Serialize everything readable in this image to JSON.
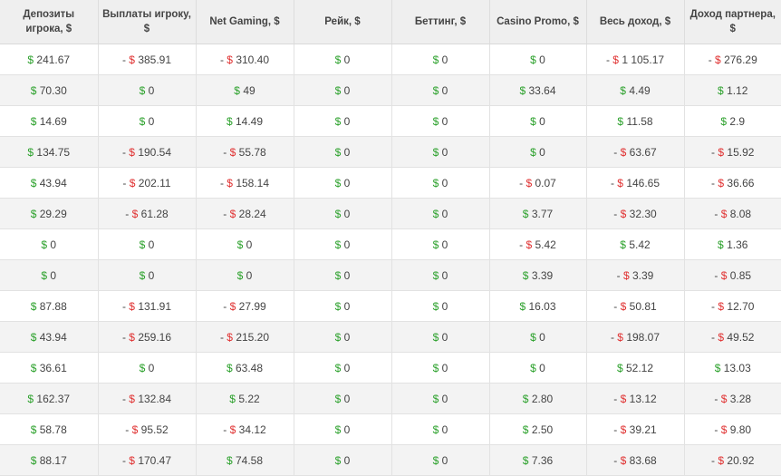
{
  "colors": {
    "positive_currency": "#2aa02a",
    "negative_currency": "#e03030",
    "header_bg": "#efefef",
    "row_alt_bg": "#f3f3f3"
  },
  "currency_symbol": "$",
  "negative_prefix": "-",
  "headers": [
    "Депозиты игрока, $",
    "Выплаты игроку, $",
    "Net Gaming, $",
    "Рейк, $",
    "Беттинг, $",
    "Casino Promo, $",
    "Весь доход, $",
    "Доход партнера, $"
  ],
  "rows": [
    [
      {
        "neg": false,
        "v": "241.67"
      },
      {
        "neg": true,
        "v": "385.91"
      },
      {
        "neg": true,
        "v": "310.40"
      },
      {
        "neg": false,
        "v": "0"
      },
      {
        "neg": false,
        "v": "0"
      },
      {
        "neg": false,
        "v": "0"
      },
      {
        "neg": true,
        "v": "1 105.17"
      },
      {
        "neg": true,
        "v": "276.29"
      }
    ],
    [
      {
        "neg": false,
        "v": "70.30"
      },
      {
        "neg": false,
        "v": "0"
      },
      {
        "neg": false,
        "v": "49"
      },
      {
        "neg": false,
        "v": "0"
      },
      {
        "neg": false,
        "v": "0"
      },
      {
        "neg": false,
        "v": "33.64"
      },
      {
        "neg": false,
        "v": "4.49"
      },
      {
        "neg": false,
        "v": "1.12"
      }
    ],
    [
      {
        "neg": false,
        "v": "14.69"
      },
      {
        "neg": false,
        "v": "0"
      },
      {
        "neg": false,
        "v": "14.49"
      },
      {
        "neg": false,
        "v": "0"
      },
      {
        "neg": false,
        "v": "0"
      },
      {
        "neg": false,
        "v": "0"
      },
      {
        "neg": false,
        "v": "11.58"
      },
      {
        "neg": false,
        "v": "2.9"
      }
    ],
    [
      {
        "neg": false,
        "v": "134.75"
      },
      {
        "neg": true,
        "v": "190.54"
      },
      {
        "neg": true,
        "v": "55.78"
      },
      {
        "neg": false,
        "v": "0"
      },
      {
        "neg": false,
        "v": "0"
      },
      {
        "neg": false,
        "v": "0"
      },
      {
        "neg": true,
        "v": "63.67"
      },
      {
        "neg": true,
        "v": "15.92"
      }
    ],
    [
      {
        "neg": false,
        "v": "43.94"
      },
      {
        "neg": true,
        "v": "202.11"
      },
      {
        "neg": true,
        "v": "158.14"
      },
      {
        "neg": false,
        "v": "0"
      },
      {
        "neg": false,
        "v": "0"
      },
      {
        "neg": true,
        "v": "0.07"
      },
      {
        "neg": true,
        "v": "146.65"
      },
      {
        "neg": true,
        "v": "36.66"
      }
    ],
    [
      {
        "neg": false,
        "v": "29.29"
      },
      {
        "neg": true,
        "v": "61.28"
      },
      {
        "neg": true,
        "v": "28.24"
      },
      {
        "neg": false,
        "v": "0"
      },
      {
        "neg": false,
        "v": "0"
      },
      {
        "neg": false,
        "v": "3.77"
      },
      {
        "neg": true,
        "v": "32.30"
      },
      {
        "neg": true,
        "v": "8.08"
      }
    ],
    [
      {
        "neg": false,
        "v": "0"
      },
      {
        "neg": false,
        "v": "0"
      },
      {
        "neg": false,
        "v": "0"
      },
      {
        "neg": false,
        "v": "0"
      },
      {
        "neg": false,
        "v": "0"
      },
      {
        "neg": true,
        "v": "5.42"
      },
      {
        "neg": false,
        "v": "5.42"
      },
      {
        "neg": false,
        "v": "1.36"
      }
    ],
    [
      {
        "neg": false,
        "v": "0"
      },
      {
        "neg": false,
        "v": "0"
      },
      {
        "neg": false,
        "v": "0"
      },
      {
        "neg": false,
        "v": "0"
      },
      {
        "neg": false,
        "v": "0"
      },
      {
        "neg": false,
        "v": "3.39"
      },
      {
        "neg": true,
        "v": "3.39"
      },
      {
        "neg": true,
        "v": "0.85"
      }
    ],
    [
      {
        "neg": false,
        "v": "87.88"
      },
      {
        "neg": true,
        "v": "131.91"
      },
      {
        "neg": true,
        "v": "27.99"
      },
      {
        "neg": false,
        "v": "0"
      },
      {
        "neg": false,
        "v": "0"
      },
      {
        "neg": false,
        "v": "16.03"
      },
      {
        "neg": true,
        "v": "50.81"
      },
      {
        "neg": true,
        "v": "12.70"
      }
    ],
    [
      {
        "neg": false,
        "v": "43.94"
      },
      {
        "neg": true,
        "v": "259.16"
      },
      {
        "neg": true,
        "v": "215.20"
      },
      {
        "neg": false,
        "v": "0"
      },
      {
        "neg": false,
        "v": "0"
      },
      {
        "neg": false,
        "v": "0"
      },
      {
        "neg": true,
        "v": "198.07"
      },
      {
        "neg": true,
        "v": "49.52"
      }
    ],
    [
      {
        "neg": false,
        "v": "36.61"
      },
      {
        "neg": false,
        "v": "0"
      },
      {
        "neg": false,
        "v": "63.48"
      },
      {
        "neg": false,
        "v": "0"
      },
      {
        "neg": false,
        "v": "0"
      },
      {
        "neg": false,
        "v": "0"
      },
      {
        "neg": false,
        "v": "52.12"
      },
      {
        "neg": false,
        "v": "13.03"
      }
    ],
    [
      {
        "neg": false,
        "v": "162.37"
      },
      {
        "neg": true,
        "v": "132.84"
      },
      {
        "neg": false,
        "v": "5.22"
      },
      {
        "neg": false,
        "v": "0"
      },
      {
        "neg": false,
        "v": "0"
      },
      {
        "neg": false,
        "v": "2.80"
      },
      {
        "neg": true,
        "v": "13.12"
      },
      {
        "neg": true,
        "v": "3.28"
      }
    ],
    [
      {
        "neg": false,
        "v": "58.78"
      },
      {
        "neg": true,
        "v": "95.52"
      },
      {
        "neg": true,
        "v": "34.12"
      },
      {
        "neg": false,
        "v": "0"
      },
      {
        "neg": false,
        "v": "0"
      },
      {
        "neg": false,
        "v": "2.50"
      },
      {
        "neg": true,
        "v": "39.21"
      },
      {
        "neg": true,
        "v": "9.80"
      }
    ],
    [
      {
        "neg": false,
        "v": "88.17"
      },
      {
        "neg": true,
        "v": "170.47"
      },
      {
        "neg": false,
        "v": "74.58"
      },
      {
        "neg": false,
        "v": "0"
      },
      {
        "neg": false,
        "v": "0"
      },
      {
        "neg": false,
        "v": "7.36"
      },
      {
        "neg": true,
        "v": "83.68"
      },
      {
        "neg": true,
        "v": "20.92"
      }
    ]
  ]
}
